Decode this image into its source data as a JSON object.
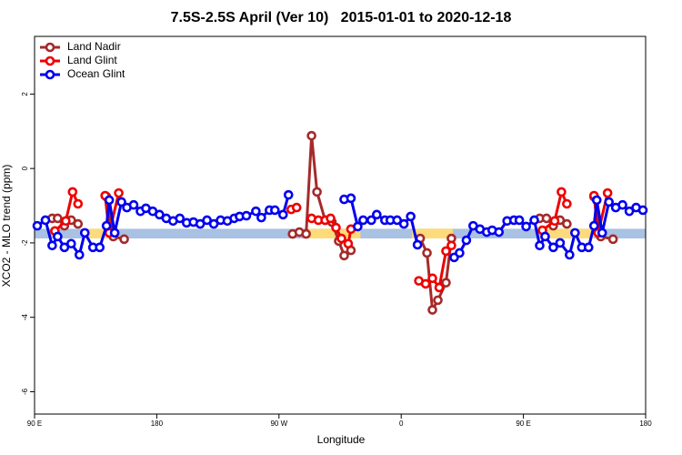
{
  "chart_data": {
    "type": "line",
    "title": "7.5S-2.5S April (Ver 10)   2015-01-01 to 2020-12-18",
    "xlabel": "Longitude",
    "ylabel": "XCO2 - MLO trend (ppm)",
    "xlim": [
      90,
      540
    ],
    "ylim": [
      -6.6,
      3.55
    ],
    "xticks": [
      {
        "value": 90,
        "label": "90 E"
      },
      180,
      {
        "value": 270,
        "label": "90 W"
      },
      {
        "value": 360,
        "label": "0"
      },
      {
        "value": 450,
        "label": "90 E"
      },
      {
        "value": 540,
        "label": "180"
      }
    ],
    "yticks": [
      -6,
      -4,
      -2,
      0,
      2
    ],
    "grid": false,
    "legend": "top-left",
    "bands": [
      {
        "color": "#a9c1e2",
        "xlim": [
          90,
          540
        ],
        "ylim": [
          -1.88,
          -1.62
        ]
      },
      {
        "color": "#fddb7a",
        "xlim": [
          128,
          152
        ],
        "ylim": [
          -1.88,
          -1.62
        ]
      },
      {
        "color": "#fddb7a",
        "xlim": [
          290,
          330
        ],
        "ylim": [
          -1.88,
          -1.62
        ]
      },
      {
        "color": "#fddb7a",
        "xlim": [
          368,
          398
        ],
        "ylim": [
          -1.88,
          -1.62
        ]
      },
      {
        "color": "#fddb7a",
        "xlim": [
          462,
          502
        ],
        "ylim": [
          -1.88,
          -1.62
        ]
      }
    ],
    "series": [
      {
        "name": "Land Nadir",
        "color": "#a52a2a",
        "x": [
          103,
          107,
          112,
          117,
          122,
          null,
          143,
          148,
          156,
          null,
          280,
          285,
          290,
          294,
          298,
          304,
          309,
          314,
          318,
          323,
          null,
          374,
          379,
          383,
          387,
          393,
          397,
          null,
          462,
          467,
          472,
          477,
          482,
          null,
          502,
          507,
          516
        ],
        "values": [
          -1.34,
          -1.34,
          -1.54,
          -1.39,
          -1.49,
          null,
          -0.76,
          -1.83,
          -1.9,
          null,
          -1.76,
          -1.71,
          -1.76,
          0.88,
          -0.63,
          -1.39,
          -1.44,
          -1.95,
          -2.34,
          -2.2,
          null,
          -1.88,
          -2.27,
          -3.8,
          -3.54,
          -3.07,
          -1.88,
          null,
          -1.34,
          -1.34,
          -1.54,
          -1.39,
          -1.49,
          null,
          -0.76,
          -1.83,
          -1.9
        ]
      },
      {
        "name": "Land Glint",
        "color": "#ee0000",
        "x": [
          105,
          113,
          118,
          122,
          null,
          142,
          145,
          152,
          null,
          279,
          283,
          null,
          294,
          299,
          304,
          308,
          312,
          316,
          321,
          323,
          null,
          373,
          378,
          383,
          388,
          393,
          397,
          null,
          464,
          473,
          478,
          482,
          null,
          502,
          505,
          512
        ],
        "values": [
          -1.68,
          -1.41,
          -0.63,
          -0.95,
          null,
          -0.73,
          -1.73,
          -0.66,
          null,
          -1.1,
          -1.05,
          null,
          -1.34,
          -1.39,
          -1.39,
          -1.34,
          -1.59,
          -1.88,
          -2.02,
          -1.63,
          null,
          -3.02,
          -3.1,
          -2.95,
          -3.2,
          -2.22,
          -2.07,
          null,
          -1.66,
          -1.41,
          -0.63,
          -0.95,
          null,
          -0.73,
          -1.73,
          -0.66
        ]
      },
      {
        "name": "Ocean Glint",
        "color": "#0000ee",
        "x": [
          92,
          98,
          103,
          107,
          112,
          117,
          123,
          127,
          133,
          138,
          143,
          145,
          149,
          154,
          158,
          163,
          168,
          172,
          177,
          182,
          187,
          192,
          197,
          202,
          207,
          212,
          217,
          222,
          227,
          232,
          237,
          241,
          246,
          253,
          257,
          263,
          267,
          273,
          277,
          null,
          318,
          323,
          328,
          332,
          338,
          342,
          348,
          352,
          357,
          362,
          367,
          372,
          null,
          399,
          403,
          408,
          413,
          418,
          423,
          427,
          432,
          438,
          443,
          447,
          452,
          458,
          462,
          466,
          472,
          477,
          484,
          488,
          493,
          498,
          502,
          504,
          508,
          513,
          518,
          523,
          528,
          533,
          538
        ],
        "values": [
          -1.54,
          -1.39,
          -2.07,
          -1.83,
          -2.12,
          -2.02,
          -2.32,
          -1.73,
          -2.12,
          -2.12,
          -1.54,
          -0.85,
          -1.73,
          -0.9,
          -1.05,
          -0.98,
          -1.15,
          -1.07,
          -1.15,
          -1.24,
          -1.34,
          -1.41,
          -1.34,
          -1.46,
          -1.44,
          -1.49,
          -1.39,
          -1.49,
          -1.39,
          -1.41,
          -1.34,
          -1.29,
          -1.27,
          -1.15,
          -1.32,
          -1.12,
          -1.12,
          -1.24,
          -0.71,
          null,
          -0.83,
          -0.8,
          -1.56,
          -1.39,
          -1.39,
          -1.24,
          -1.39,
          -1.39,
          -1.39,
          -1.49,
          -1.29,
          -2.05,
          null,
          -2.39,
          -2.27,
          -1.93,
          -1.54,
          -1.63,
          -1.71,
          -1.66,
          -1.71,
          -1.41,
          -1.39,
          -1.39,
          -1.56,
          -1.39,
          -2.07,
          -1.83,
          -2.12,
          -2.0,
          -2.32,
          -1.73,
          -2.12,
          -2.12,
          -1.54,
          -0.85,
          -1.73,
          -0.9,
          -1.05,
          -0.98,
          -1.15,
          -1.05,
          -1.12
        ]
      }
    ]
  }
}
